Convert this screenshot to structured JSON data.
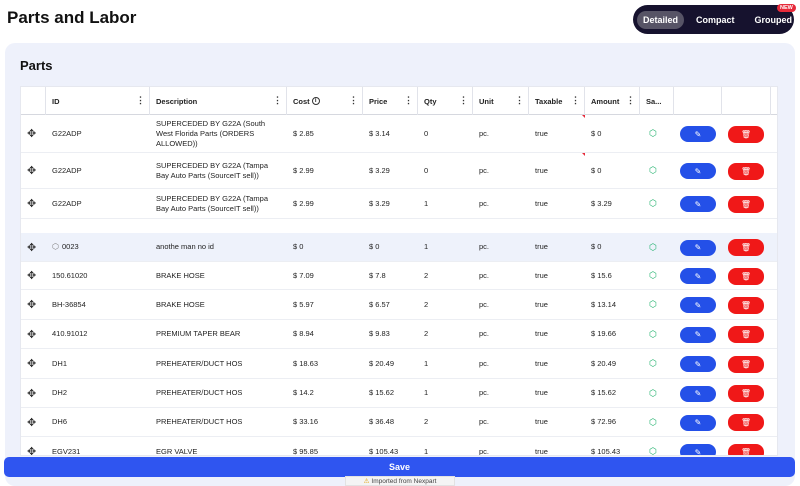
{
  "page_title": "Parts and Labor",
  "view_toggle": {
    "detailed": "Detailed",
    "compact": "Compact",
    "grouped": "Grouped",
    "new_badge": "NEW",
    "selected": "Detailed"
  },
  "section_title": "Parts",
  "columns": {
    "id": "ID",
    "description": "Description",
    "cost": "Cost",
    "price": "Price",
    "qty": "Qty",
    "unit": "Unit",
    "taxable": "Taxable",
    "amount": "Amount",
    "save": "Sa..."
  },
  "rows": [
    {
      "id": "G22ADP",
      "description": "SUPERCEDED BY G22A (South West Florida Parts (ORDERS ALLOWED))",
      "cost": "$ 2.85",
      "price": "$ 3.14",
      "qty": "0",
      "unit": "pc.",
      "taxable": "true",
      "amount": "$ 0"
    },
    {
      "id": "G22ADP",
      "description": "SUPERCEDED BY G22A (Tampa Bay Auto Parts (SourceIT sell))",
      "cost": "$ 2.99",
      "price": "$ 3.29",
      "qty": "0",
      "unit": "pc.",
      "taxable": "true",
      "amount": "$ 0"
    },
    {
      "id": "G22ADP",
      "description": "SUPERCEDED BY G22A (Tampa Bay Auto Parts (SourceIT sell))",
      "cost": "$ 2.99",
      "price": "$ 3.29",
      "qty": "1",
      "unit": "pc.",
      "taxable": "true",
      "amount": "$ 3.29"
    },
    {
      "id": "0023",
      "description": "anothe man no id",
      "cost": "$ 0",
      "price": "$ 0",
      "qty": "1",
      "unit": "pc.",
      "taxable": "true",
      "amount": "$ 0"
    },
    {
      "id": "150.61020",
      "description": "BRAKE HOSE",
      "cost": "$ 7.09",
      "price": "$ 7.8",
      "qty": "2",
      "unit": "pc.",
      "taxable": "true",
      "amount": "$ 15.6"
    },
    {
      "id": "BH-36854",
      "description": "BRAKE HOSE",
      "cost": "$ 5.97",
      "price": "$ 6.57",
      "qty": "2",
      "unit": "pc.",
      "taxable": "true",
      "amount": "$ 13.14"
    },
    {
      "id": "410.91012",
      "description": "PREMIUM TAPER BEAR",
      "cost": "$ 8.94",
      "price": "$ 9.83",
      "qty": "2",
      "unit": "pc.",
      "taxable": "true",
      "amount": "$ 19.66"
    },
    {
      "id": "DH1",
      "description": "PREHEATER/DUCT HOS",
      "cost": "$ 18.63",
      "price": "$ 20.49",
      "qty": "1",
      "unit": "pc.",
      "taxable": "true",
      "amount": "$ 20.49"
    },
    {
      "id": "DH2",
      "description": "PREHEATER/DUCT HOS",
      "cost": "$ 14.2",
      "price": "$ 15.62",
      "qty": "1",
      "unit": "pc.",
      "taxable": "true",
      "amount": "$ 15.62"
    },
    {
      "id": "DH6",
      "description": "PREHEATER/DUCT HOS",
      "cost": "$ 33.16",
      "price": "$ 36.48",
      "qty": "2",
      "unit": "pc.",
      "taxable": "true",
      "amount": "$ 72.96"
    },
    {
      "id": "EGV231",
      "description": "EGR VALVE",
      "cost": "$ 95.85",
      "price": "$ 105.43",
      "qty": "1",
      "unit": "pc.",
      "taxable": "true",
      "amount": "$ 105.43"
    }
  ],
  "save_label": "Save",
  "import_note": "Imported from Nexpart",
  "colors": {
    "accent": "#2f55f0",
    "danger": "#f01818",
    "toggle_bg": "#16122e",
    "panel_bg": "#eef1fb",
    "save_icon": "#1db06b"
  }
}
